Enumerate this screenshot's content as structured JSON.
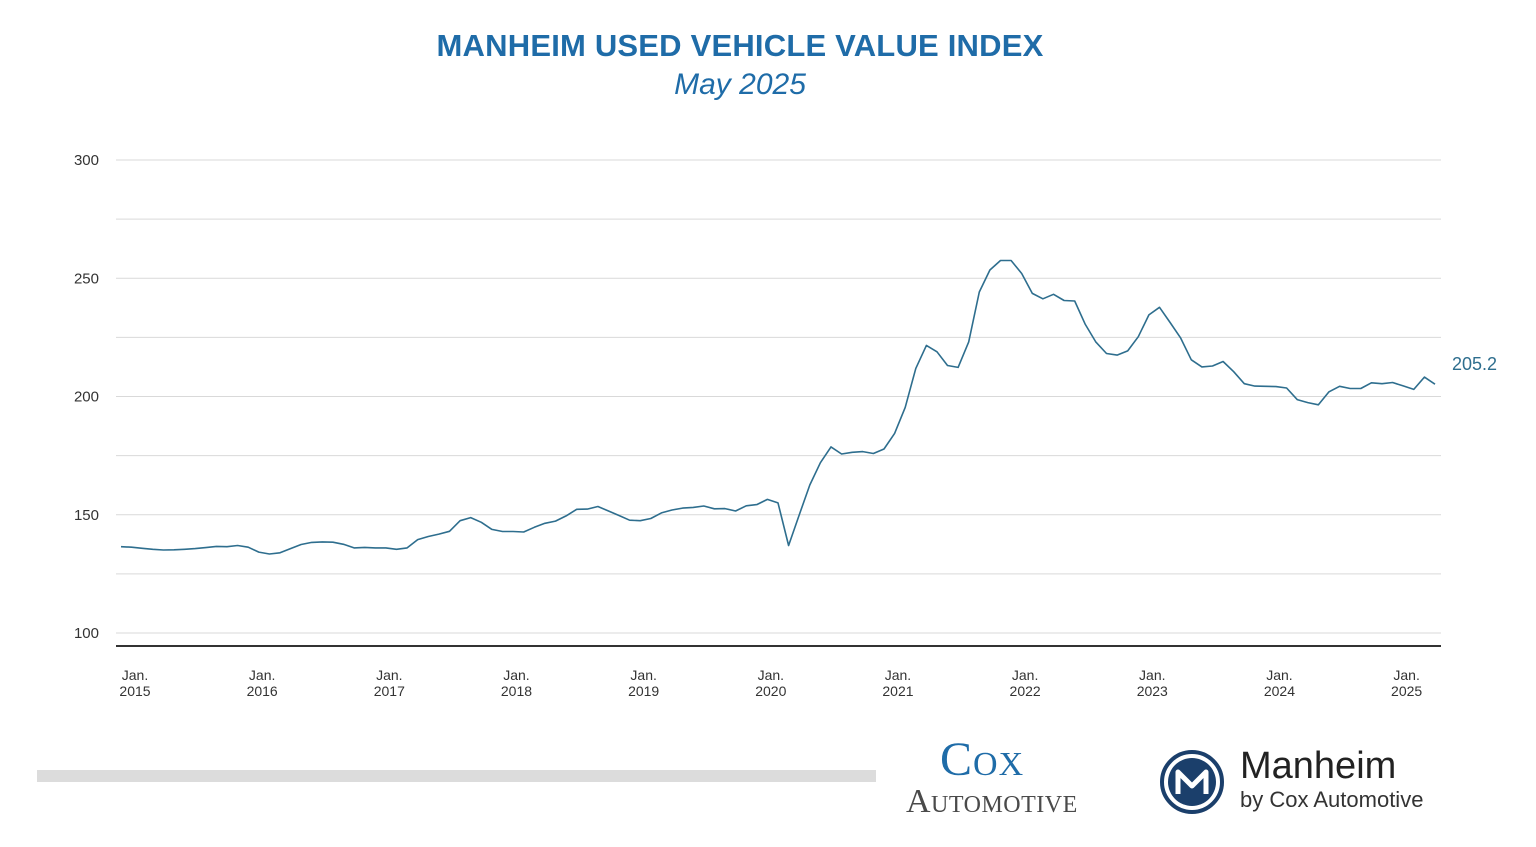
{
  "header": {
    "title": "MANHEIM USED VEHICLE VALUE INDEX",
    "subtitle": "May 2025"
  },
  "colors": {
    "title": "#1f6ca8",
    "line": "#2e6e8e",
    "grid": "#d9d9d9",
    "axis": "#333333",
    "end_label": "#2e6e8e"
  },
  "chart_data": {
    "type": "line",
    "title": "MANHEIM USED VEHICLE VALUE INDEX",
    "subtitle": "May 2025",
    "xlabel": "",
    "ylabel": "",
    "ylim": [
      100,
      300
    ],
    "yticks": [
      100,
      150,
      200,
      250,
      300
    ],
    "grid": true,
    "legend": "none",
    "x_start": "2015-01",
    "x_ticks": [
      {
        "month_index": 0,
        "line1": "Jan.",
        "line2": "2015"
      },
      {
        "month_index": 12,
        "line1": "Jan.",
        "line2": "2016"
      },
      {
        "month_index": 24,
        "line1": "Jan.",
        "line2": "2017"
      },
      {
        "month_index": 36,
        "line1": "Jan.",
        "line2": "2018"
      },
      {
        "month_index": 48,
        "line1": "Jan.",
        "line2": "2019"
      },
      {
        "month_index": 60,
        "line1": "Jan.",
        "line2": "2020"
      },
      {
        "month_index": 72,
        "line1": "Jan.",
        "line2": "2021"
      },
      {
        "month_index": 84,
        "line1": "Jan.",
        "line2": "2022"
      },
      {
        "month_index": 96,
        "line1": "Jan.",
        "line2": "2023"
      },
      {
        "month_index": 108,
        "line1": "Jan.",
        "line2": "2024"
      },
      {
        "month_index": 120,
        "line1": "Jan.",
        "line2": "2025"
      }
    ],
    "end_label": "205.2",
    "series": [
      {
        "values": [
          136.5,
          136.3,
          135.8,
          135.4,
          135.1,
          135.2,
          135.4,
          135.7,
          136.1,
          136.6,
          136.5,
          137.0,
          136.3,
          134.2,
          133.4,
          133.9,
          135.7,
          137.4,
          138.3,
          138.5,
          138.4,
          137.5,
          136.0,
          136.2,
          136.0,
          136.0,
          135.4,
          136.0,
          139.5,
          140.8,
          141.8,
          143.0,
          147.5,
          148.8,
          146.8,
          143.8,
          142.9,
          142.9,
          142.7,
          144.7,
          146.4,
          147.3,
          149.5,
          152.3,
          152.4,
          153.5,
          151.6,
          149.7,
          147.7,
          147.5,
          148.4,
          150.8,
          152.0,
          152.8,
          153.1,
          153.7,
          152.5,
          152.6,
          151.6,
          153.8,
          154.3,
          156.5,
          155.0,
          137.0,
          149.9,
          162.6,
          172.0,
          178.7,
          175.7,
          176.4,
          176.7,
          175.9,
          177.8,
          184.4,
          195.4,
          211.9,
          221.6,
          218.9,
          213.1,
          212.3,
          223.1,
          244.2,
          253.5,
          257.5,
          257.5,
          252.0,
          243.6,
          241.3,
          243.2,
          240.6,
          240.4,
          230.5,
          223.0,
          218.2,
          217.5,
          219.3,
          225.3,
          234.5,
          237.7,
          231.3,
          224.7,
          215.5,
          212.5,
          212.9,
          214.8,
          210.5,
          205.4,
          204.4,
          204.3,
          204.2,
          203.6,
          198.7,
          197.4,
          196.5,
          202.0,
          204.3,
          203.4,
          203.4,
          205.8,
          205.4,
          205.9,
          204.5,
          203.0,
          208.2,
          205.2
        ]
      }
    ]
  },
  "branding": {
    "cox_line1": "Cox",
    "cox_line2": "Automotive",
    "manheim_name": "Manheim",
    "manheim_by": "by Cox Automotive",
    "manheim_icon": "manheim-m-icon"
  }
}
